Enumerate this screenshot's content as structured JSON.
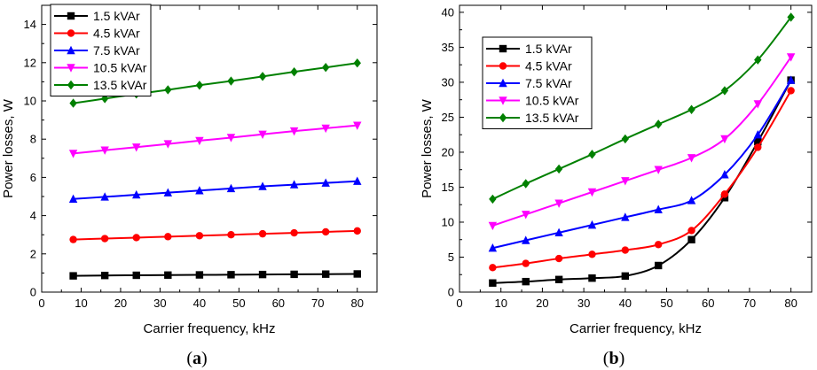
{
  "chart_data": [
    {
      "type": "line",
      "panel_label": "(a)",
      "panel_letter": "a",
      "xlabel": "Carrier frequency, kHz",
      "ylabel": "Power losses, W",
      "xlim": [
        0,
        85
      ],
      "ylim": [
        0,
        15
      ],
      "xticks": [
        0,
        10,
        20,
        30,
        40,
        50,
        60,
        70,
        80
      ],
      "yticks": [
        0,
        2,
        4,
        6,
        8,
        10,
        12,
        14
      ],
      "legend_position": "top-left",
      "x": [
        8,
        16,
        24,
        32,
        40,
        48,
        56,
        64,
        72,
        80
      ],
      "series": [
        {
          "name": "1.5 kVAr",
          "color": "#000000",
          "marker": "square",
          "values": [
            0.85,
            0.87,
            0.88,
            0.89,
            0.9,
            0.91,
            0.92,
            0.93,
            0.94,
            0.95
          ]
        },
        {
          "name": "4.5 kVAr",
          "color": "#ff0000",
          "marker": "circle",
          "values": [
            2.75,
            2.8,
            2.85,
            2.9,
            2.95,
            3.0,
            3.05,
            3.1,
            3.15,
            3.2
          ]
        },
        {
          "name": "7.5 kVAr",
          "color": "#0000ff",
          "marker": "triangle-up",
          "values": [
            4.87,
            4.98,
            5.09,
            5.2,
            5.31,
            5.42,
            5.53,
            5.62,
            5.71,
            5.8
          ]
        },
        {
          "name": "10.5 kVAr",
          "color": "#ff00ff",
          "marker": "triangle-down",
          "values": [
            7.25,
            7.42,
            7.58,
            7.75,
            7.92,
            8.08,
            8.25,
            8.42,
            8.57,
            8.72
          ]
        },
        {
          "name": "13.5 kVAr",
          "color": "#008000",
          "marker": "diamond",
          "values": [
            9.88,
            10.12,
            10.36,
            10.58,
            10.82,
            11.04,
            11.28,
            11.52,
            11.75,
            11.98
          ]
        }
      ]
    },
    {
      "type": "line",
      "panel_label": "(b)",
      "panel_letter": "b",
      "xlabel": "Carrier frequency, kHz",
      "ylabel": "Power losses, W",
      "xlim": [
        0,
        85
      ],
      "ylim": [
        0,
        41
      ],
      "xticks": [
        0,
        10,
        20,
        30,
        40,
        50,
        60,
        70,
        80
      ],
      "yticks": [
        0,
        5,
        10,
        15,
        20,
        25,
        30,
        35,
        40
      ],
      "legend_position": "top-left",
      "x": [
        8,
        16,
        24,
        32,
        40,
        48,
        56,
        64,
        72,
        80
      ],
      "series": [
        {
          "name": "1.5 kVAr",
          "color": "#000000",
          "marker": "square",
          "values": [
            1.3,
            1.5,
            1.8,
            2.0,
            2.3,
            3.8,
            7.5,
            13.5,
            21.5,
            30.3
          ]
        },
        {
          "name": "4.5 kVAr",
          "color": "#ff0000",
          "marker": "circle",
          "values": [
            3.5,
            4.1,
            4.8,
            5.4,
            6.0,
            6.8,
            8.8,
            14.0,
            20.7,
            28.8
          ]
        },
        {
          "name": "7.5 kVAr",
          "color": "#0000ff",
          "marker": "triangle-up",
          "values": [
            6.3,
            7.4,
            8.5,
            9.6,
            10.7,
            11.8,
            13.1,
            16.8,
            22.5,
            30.3
          ]
        },
        {
          "name": "10.5 kVAr",
          "color": "#ff00ff",
          "marker": "triangle-down",
          "values": [
            9.5,
            11.1,
            12.7,
            14.3,
            15.9,
            17.5,
            19.2,
            21.9,
            26.9,
            33.6
          ]
        },
        {
          "name": "13.5 kVAr",
          "color": "#008000",
          "marker": "diamond",
          "values": [
            13.3,
            15.5,
            17.6,
            19.7,
            21.9,
            24.0,
            26.1,
            28.8,
            33.2,
            39.3
          ]
        }
      ]
    }
  ]
}
